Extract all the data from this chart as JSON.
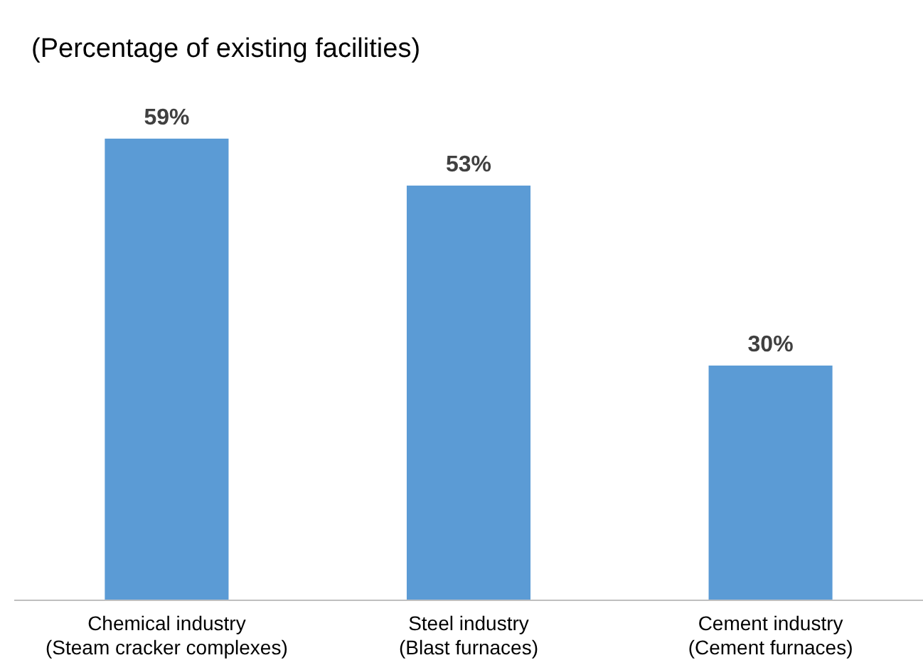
{
  "chart_data": {
    "type": "bar",
    "title": "(Percentage of existing facilities)",
    "categories": [
      "Chemical industry\n(Steam cracker complexes)",
      "Steel industry\n(Blast furnaces)",
      "Cement industry\n(Cement furnaces)"
    ],
    "values": [
      59,
      53,
      30
    ],
    "value_labels": [
      "59%",
      "53%",
      "30%"
    ],
    "color": "#5b9bd5",
    "grid": false
  }
}
